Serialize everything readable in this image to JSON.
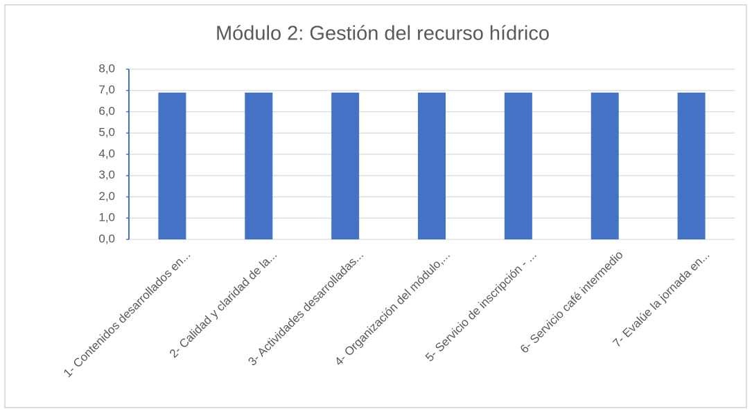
{
  "chart_data": {
    "type": "bar",
    "title": "Módulo 2: Gestión del recurso hídrico",
    "categories": [
      "1- Contenidos desarrollados en...",
      "2- Calidad y claridad de la...",
      "3- Actividades desarrolladas...",
      "4- Organización del módulo,...",
      "5- Servicio de inscripción - ...",
      "6- Servicio café intermedio",
      "7- Evalúe la jornada en..."
    ],
    "values": [
      6.9,
      6.9,
      6.9,
      6.9,
      6.9,
      6.9,
      6.9
    ],
    "color": "#4472c4",
    "ylim": [
      0,
      8
    ],
    "yticks": [
      {
        "value": 0,
        "label": "0,0"
      },
      {
        "value": 1,
        "label": "1,0"
      },
      {
        "value": 2,
        "label": "2,0"
      },
      {
        "value": 3,
        "label": "3,0"
      },
      {
        "value": 4,
        "label": "4,0"
      },
      {
        "value": 5,
        "label": "5,0"
      },
      {
        "value": 6,
        "label": "6,0"
      },
      {
        "value": 7,
        "label": "7,0"
      },
      {
        "value": 8,
        "label": "8,0"
      }
    ],
    "grid": true
  }
}
